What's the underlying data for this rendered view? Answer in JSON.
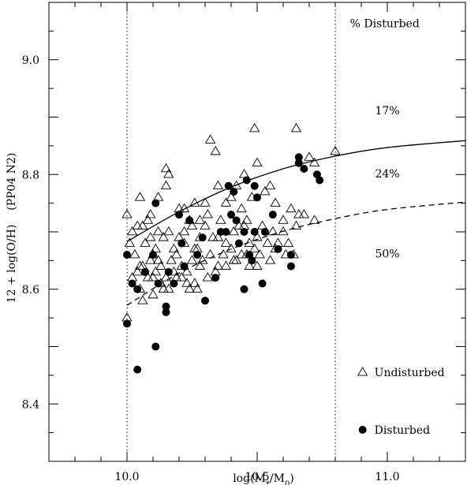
{
  "chart_data": {
    "type": "scatter",
    "xlabel": "log(M*/M0)",
    "xlabel_parts": {
      "pre": "log(M",
      "sub1": "*",
      "mid": "/M",
      "sub2": "0",
      "post": ")"
    },
    "ylabel": "12 + log(O/H)    (PP04 N2)",
    "xlim": [
      9.7,
      11.3
    ],
    "ylim": [
      8.3,
      9.1
    ],
    "x_ticks": [
      10.0,
      10.5,
      11.0
    ],
    "x_tick_labels": [
      "10.0",
      "10.5",
      "11.0"
    ],
    "y_ticks": [
      8.4,
      8.6,
      8.8,
      9.0
    ],
    "y_tick_labels": [
      "8.4",
      "8.6",
      "8.8",
      "9.0"
    ],
    "vlines": [
      10.0,
      10.8
    ],
    "vline_style": "dotted",
    "curves": [
      {
        "style": "solid",
        "x": [
          10.0,
          10.2,
          10.4,
          10.6,
          10.8,
          11.0,
          11.3
        ],
        "y": [
          8.683,
          8.735,
          8.778,
          8.81,
          8.832,
          8.847,
          8.859
        ]
      },
      {
        "style": "dashed",
        "x": [
          10.0,
          10.2,
          10.4,
          10.6,
          10.8,
          11.0,
          11.3
        ],
        "y": [
          8.572,
          8.628,
          8.67,
          8.701,
          8.723,
          8.739,
          8.752
        ]
      }
    ],
    "annotations": [
      {
        "text": "% Disturbed",
        "x": 10.99,
        "y": 9.057
      },
      {
        "text": "17%",
        "x": 11.0,
        "y": 8.905
      },
      {
        "text": "24%",
        "x": 11.0,
        "y": 8.795
      },
      {
        "text": "50%",
        "x": 11.0,
        "y": 8.655
      }
    ],
    "legend": {
      "placement": "bottom-right",
      "items": [
        {
          "name": "Undisturbed",
          "marker": "open-triangle",
          "x": 10.905,
          "y": 8.455
        },
        {
          "name": "Disturbed",
          "marker": "filled-circle",
          "x": 10.905,
          "y": 8.355
        }
      ]
    },
    "series": [
      {
        "name": "Undisturbed",
        "marker": "open-triangle",
        "x": [
          10.0,
          10.0,
          10.02,
          10.04,
          10.06,
          10.09,
          10.11,
          10.12,
          10.15,
          10.16,
          10.2,
          10.22,
          10.25,
          10.28,
          10.3,
          10.31,
          10.32,
          10.34,
          10.35,
          10.38,
          10.4,
          10.42,
          10.44,
          10.45,
          10.48,
          10.49,
          10.5,
          10.53,
          10.55,
          10.58,
          10.65,
          10.66,
          10.7,
          10.72,
          10.8,
          10.03,
          10.05,
          10.07,
          10.08,
          10.1,
          10.12,
          10.14,
          10.16,
          10.18,
          10.2,
          10.22,
          10.24,
          10.26,
          10.28,
          10.3,
          10.33,
          10.36,
          10.38,
          10.41,
          10.43,
          10.46,
          10.47,
          10.5,
          10.52,
          10.56,
          10.6,
          10.63,
          10.68,
          10.72,
          10.04,
          10.06,
          10.09,
          10.11,
          10.13,
          10.15,
          10.17,
          10.19,
          10.21,
          10.23,
          10.25,
          10.27,
          10.29,
          10.32,
          10.35,
          10.37,
          10.4,
          10.42,
          10.44,
          10.47,
          10.49,
          10.51,
          10.54,
          10.57,
          10.6,
          10.62,
          10.65,
          10.02,
          10.05,
          10.08,
          10.1,
          10.13,
          10.16,
          10.18,
          10.21,
          10.24,
          10.26,
          10.28,
          10.31,
          10.34,
          10.38,
          10.41,
          10.46,
          10.5,
          10.55,
          10.64,
          10.06,
          10.1,
          10.14,
          10.19,
          10.23,
          10.27,
          10.35,
          10.45,
          10.57,
          10.61,
          10.01,
          10.05,
          10.09,
          10.12,
          10.15,
          10.22,
          10.26
        ],
        "y": [
          8.73,
          8.55,
          8.7,
          8.71,
          8.71,
          8.69,
          8.67,
          8.7,
          8.81,
          8.8,
          8.74,
          8.68,
          8.71,
          8.72,
          8.75,
          8.73,
          8.86,
          8.84,
          8.78,
          8.75,
          8.76,
          8.78,
          8.74,
          8.8,
          8.76,
          8.88,
          8.82,
          8.77,
          8.78,
          8.68,
          8.88,
          8.73,
          8.83,
          8.82,
          8.84,
          8.66,
          8.64,
          8.68,
          8.72,
          8.66,
          8.65,
          8.69,
          8.7,
          8.67,
          8.69,
          8.7,
          8.72,
          8.67,
          8.69,
          8.71,
          8.69,
          8.72,
          8.68,
          8.7,
          8.71,
          8.72,
          8.68,
          8.69,
          8.71,
          8.7,
          8.72,
          8.74,
          8.73,
          8.72,
          8.63,
          8.64,
          8.65,
          8.63,
          8.64,
          8.62,
          8.65,
          8.66,
          8.64,
          8.63,
          8.65,
          8.67,
          8.65,
          8.66,
          8.64,
          8.66,
          8.67,
          8.65,
          8.66,
          8.64,
          8.67,
          8.66,
          8.68,
          8.67,
          8.7,
          8.68,
          8.71,
          8.62,
          8.6,
          8.62,
          8.59,
          8.61,
          8.6,
          8.63,
          8.62,
          8.6,
          8.61,
          8.64,
          8.62,
          8.63,
          8.64,
          8.65,
          8.66,
          8.64,
          8.65,
          8.66,
          8.58,
          8.62,
          8.6,
          8.62,
          8.61,
          8.6,
          8.69,
          8.71,
          8.75,
          8.66,
          8.68,
          8.76,
          8.73,
          8.76,
          8.78,
          8.74,
          8.75
        ]
      },
      {
        "name": "Disturbed",
        "marker": "filled-circle",
        "x": [
          10.0,
          10.0,
          10.02,
          10.04,
          10.04,
          10.07,
          10.1,
          10.11,
          10.11,
          10.12,
          10.15,
          10.15,
          10.16,
          10.18,
          10.2,
          10.21,
          10.22,
          10.24,
          10.27,
          10.29,
          10.3,
          10.34,
          10.36,
          10.38,
          10.39,
          10.4,
          10.41,
          10.42,
          10.43,
          10.45,
          10.45,
          10.46,
          10.47,
          10.48,
          10.49,
          10.49,
          10.5,
          10.52,
          10.53,
          10.56,
          10.58,
          10.63,
          10.63,
          10.66,
          10.66,
          10.68,
          10.73,
          10.74
        ],
        "y": [
          8.66,
          8.54,
          8.61,
          8.6,
          8.46,
          8.63,
          8.66,
          8.75,
          8.5,
          8.61,
          8.56,
          8.57,
          8.63,
          8.61,
          8.73,
          8.68,
          8.64,
          8.72,
          8.66,
          8.69,
          8.58,
          8.62,
          8.7,
          8.7,
          8.78,
          8.73,
          8.77,
          8.72,
          8.68,
          8.7,
          8.6,
          8.79,
          8.66,
          8.65,
          8.7,
          8.78,
          8.76,
          8.61,
          8.7,
          8.73,
          8.67,
          8.66,
          8.64,
          8.82,
          8.83,
          8.81,
          8.8,
          8.79
        ]
      }
    ]
  }
}
